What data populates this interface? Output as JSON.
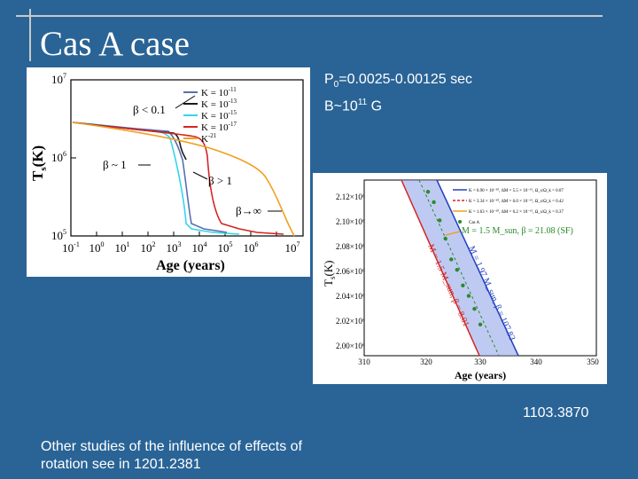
{
  "slide": {
    "title": "Cas A case",
    "period_prefix": "P",
    "period_sub": "0",
    "period_rest": "=0.0025-0.00125 sec",
    "field_prefix": "B~10",
    "field_exp": "11",
    "field_unit": " G",
    "reference_id": "1103.3870",
    "footnote": "Other studies of the influence of effects of rotation see in 1201.2381"
  },
  "left_plot": {
    "ylabel_main": "T",
    "ylabel_sub": "s",
    "ylabel_unit": "(K)",
    "xlabel": "Age (years)",
    "y_ticks": [
      {
        "base": "10",
        "exp": "7"
      },
      {
        "base": "10",
        "exp": "6"
      },
      {
        "base": "10",
        "exp": "5"
      }
    ],
    "x_ticks": [
      {
        "base": "10",
        "exp": "-1"
      },
      {
        "base": "10",
        "exp": "0"
      },
      {
        "base": "10",
        "exp": "1"
      },
      {
        "base": "10",
        "exp": "2"
      },
      {
        "base": "10",
        "exp": "3"
      },
      {
        "base": "10",
        "exp": "4"
      },
      {
        "base": "10",
        "exp": "5"
      },
      {
        "base": "10",
        "exp": "6"
      },
      {
        "base": "10",
        "exp": "7"
      }
    ],
    "legend": [
      {
        "label": "K = 10",
        "exp": "-11",
        "color": "#5a6fb0"
      },
      {
        "label": "K = 10",
        "exp": "-13",
        "color": "#1a1a1a"
      },
      {
        "label": "K = 10",
        "exp": "-15",
        "color": "#35d6e8"
      },
      {
        "label": "K = 10",
        "exp": "-17",
        "color": "#d42424"
      },
      {
        "label": "K",
        "exp": "-21",
        "color": "#f0a020"
      }
    ],
    "annotations": {
      "beta_lt_01": "β < 0.1",
      "beta_sim_1": "β ~ 1",
      "beta_gt_1": "β > 1",
      "beta_inf": "β→∞"
    },
    "curves": {
      "description_free": true,
      "colors": [
        "#5a6fb0",
        "#1a1a1a",
        "#35d6e8",
        "#d42424",
        "#f0a020"
      ]
    }
  },
  "right_plot": {
    "ylabel_main": "T",
    "ylabel_sub": "s",
    "ylabel_unit": "(K)",
    "xlabel": "Age (years)",
    "y_ticks": [
      "2.12×10⁶",
      "2.10×10⁶",
      "2.08×10⁶",
      "2.06×10⁶",
      "2.04×10⁶",
      "2.02×10⁶",
      "2.00×10⁶"
    ],
    "x_ticks": [
      "310",
      "320",
      "330",
      "340",
      "350"
    ],
    "legend": [
      {
        "label": "K = 6.90 × 10⁻²⁰, ΔM = 5.5 × 10⁻¹⁵, Ω_s/Ω_k = 0.07",
        "color": "#2040c0"
      },
      {
        "label": "K = 3.34 × 10⁻²⁰, ΔM = 6.0 × 10⁻¹⁵, Ω_s/Ω_k = 0.42",
        "color": "#d42424"
      },
      {
        "label": "K = 1.63 × 10⁻²⁰, ΔM = 6.2 × 10⁻¹⁵, Ω_s/Ω_k = 0.37",
        "color": "#f0a020"
      },
      {
        "label": "Cas A",
        "color": "#2a8a2a"
      }
    ],
    "annotations": {
      "sf": "M = 1.5 M_sun, β = 21.08 (SF)",
      "band_upper": "M = 1.97 M_sun, β = 107.83",
      "band_lower": "M = 1.5 M_sun, β = 8.01"
    },
    "chart_data": {
      "type": "scatter",
      "x": [
        321,
        322,
        323,
        324,
        325,
        326,
        327,
        328,
        329,
        330
      ],
      "y": [
        2.116,
        2.108,
        2.094,
        2.08,
        2.064,
        2.056,
        2.044,
        2.036,
        2.026,
        2.014
      ],
      "xlim": [
        310,
        350
      ],
      "ylim": [
        1.99,
        2.125
      ]
    }
  }
}
